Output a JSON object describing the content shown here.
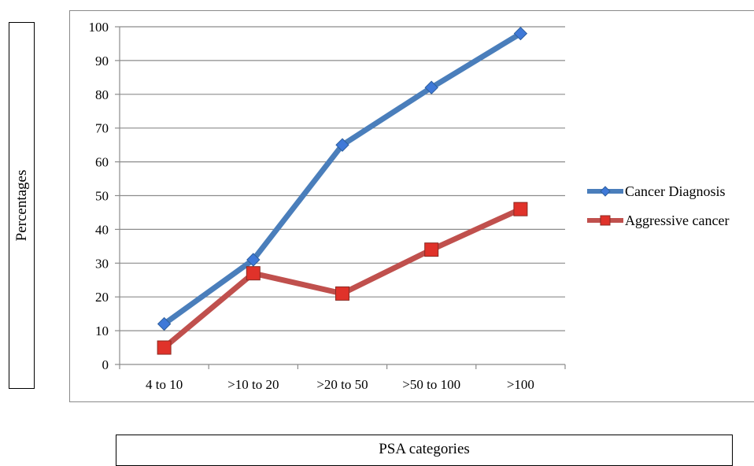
{
  "chart_data": {
    "type": "line",
    "title": "",
    "xlabel": "PSA categories",
    "ylabel": "Percentages",
    "categories": [
      "4 to 10",
      ">10 to 20",
      ">20 to 50",
      ">50 to 100",
      ">100"
    ],
    "ylim": [
      0,
      100
    ],
    "yticks": [
      0,
      10,
      20,
      30,
      40,
      50,
      60,
      70,
      80,
      90,
      100
    ],
    "grid": true,
    "legend_position": "right",
    "series": [
      {
        "name": "Cancer Diagnosis",
        "values": [
          12,
          31,
          65,
          82,
          98
        ],
        "color": "#4a7ebb",
        "marker": "diamond",
        "marker_color": "#3f79d8"
      },
      {
        "name": "Aggressive cancer",
        "values": [
          5,
          27,
          21,
          34,
          46
        ],
        "color": "#c0504d",
        "marker": "square",
        "marker_color": "#e0322a"
      }
    ]
  }
}
